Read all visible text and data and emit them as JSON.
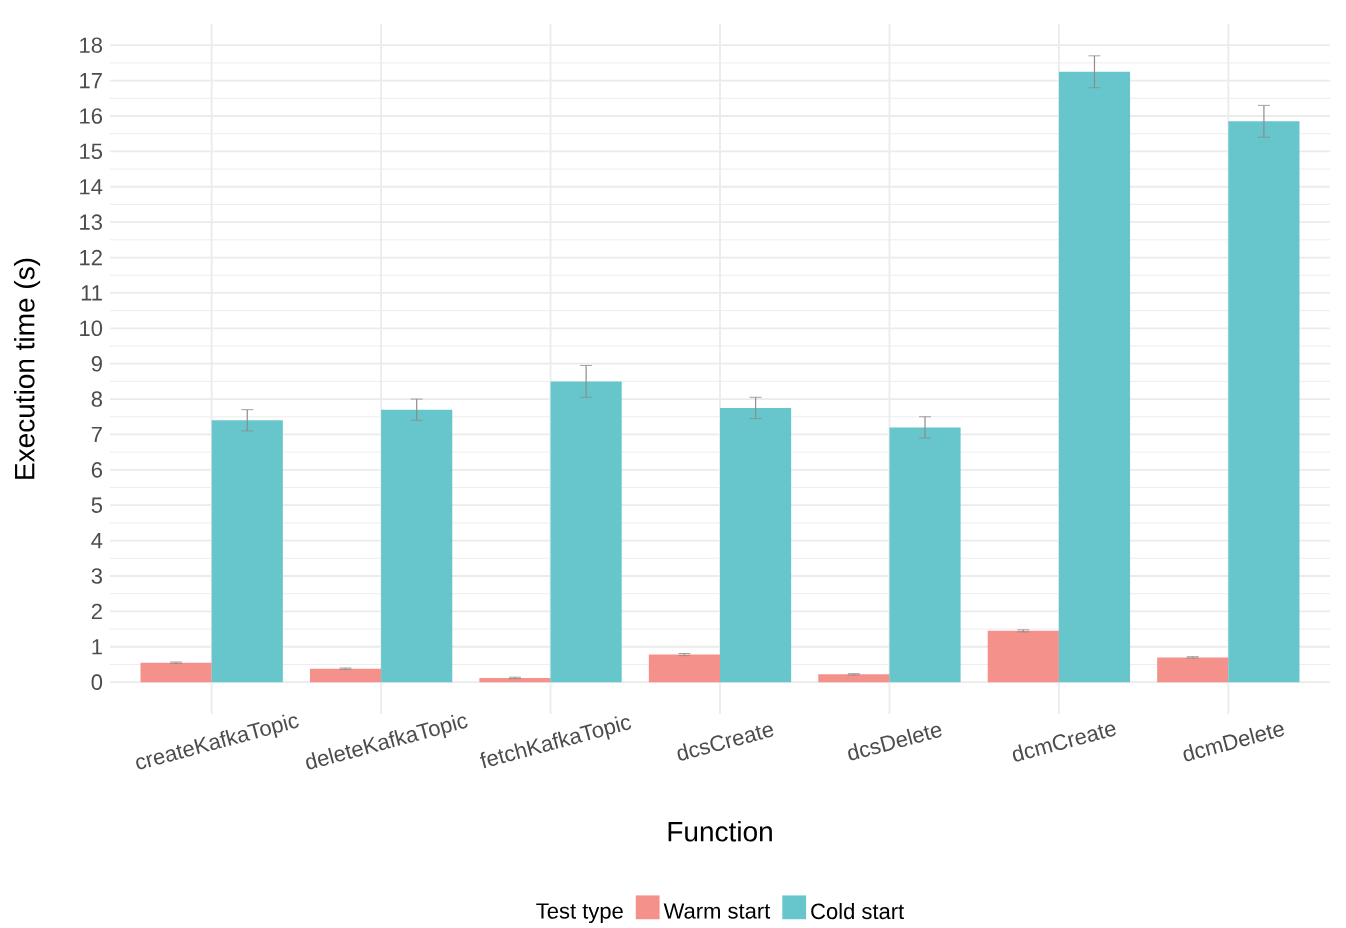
{
  "chart_data": {
    "type": "bar",
    "xlabel": "Function",
    "ylabel": "Execution time (s)",
    "legend_title": "Test type",
    "categories": [
      "createKafkaTopic",
      "deleteKafkaTopic",
      "fetchKafkaTopic",
      "dcsCreate",
      "dcsDelete",
      "dcmCreate",
      "dcmDelete"
    ],
    "series": [
      {
        "name": "Warm start",
        "color": "#f3918a",
        "values": [
          0.55,
          0.38,
          0.12,
          0.78,
          0.22,
          1.45,
          0.7
        ],
        "errors": [
          0.02,
          0.02,
          0.02,
          0.03,
          0.02,
          0.03,
          0.02
        ]
      },
      {
        "name": "Cold start",
        "color": "#66c6cb",
        "values": [
          7.4,
          7.7,
          8.5,
          7.75,
          7.2,
          17.25,
          15.85
        ],
        "errors": [
          0.3,
          0.3,
          0.45,
          0.3,
          0.3,
          0.45,
          0.45
        ]
      }
    ],
    "ylim": [
      -0.9,
      18.6
    ],
    "yticks": [
      0,
      1,
      2,
      3,
      4,
      5,
      6,
      7,
      8,
      9,
      10,
      11,
      12,
      13,
      14,
      15,
      16,
      17,
      18
    ],
    "grid": true,
    "legend": "bottom"
  }
}
